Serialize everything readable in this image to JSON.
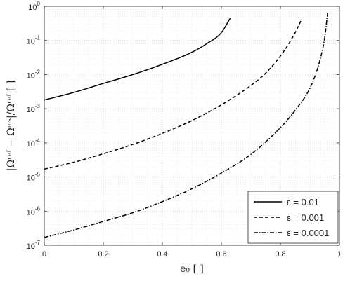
{
  "chart_data": {
    "type": "line",
    "xlabel": "e₀ [ ]",
    "ylabel": "|Ωʳᵉᶠ − Ωᵐˢ|/Ωʳᵉᶠ [ ]",
    "xlim": [
      0,
      1
    ],
    "ylim": [
      1e-07,
      1
    ],
    "yscale": "log",
    "grid": true,
    "legend_position": "bottom-right",
    "x_ticks": [
      "0",
      "0.2",
      "0.4",
      "0.6",
      "0.8",
      "1"
    ],
    "y_ticks": [
      {
        "base": "10",
        "exp": "0"
      },
      {
        "base": "10",
        "exp": "-1"
      },
      {
        "base": "10",
        "exp": "-2"
      },
      {
        "base": "10",
        "exp": "-3"
      },
      {
        "base": "10",
        "exp": "-4"
      },
      {
        "base": "10",
        "exp": "-5"
      },
      {
        "base": "10",
        "exp": "-6"
      },
      {
        "base": "10",
        "exp": "-7"
      }
    ],
    "series": [
      {
        "name": "ε = 0.01",
        "dash": "solid",
        "color": "#000000",
        "x": [
          0,
          0.1,
          0.2,
          0.3,
          0.4,
          0.5,
          0.55,
          0.6,
          0.63
        ],
        "y": [
          0.0018,
          0.003,
          0.0055,
          0.01,
          0.02,
          0.045,
          0.08,
          0.17,
          0.45
        ]
      },
      {
        "name": "ε = 0.001",
        "dash": "dashed",
        "color": "#000000",
        "x": [
          0,
          0.1,
          0.2,
          0.3,
          0.4,
          0.5,
          0.6,
          0.7,
          0.75,
          0.8,
          0.83,
          0.85,
          0.87
        ],
        "y": [
          1.7e-05,
          2.7e-05,
          4.8e-05,
          9e-05,
          0.00019,
          0.00045,
          0.0013,
          0.0048,
          0.011,
          0.035,
          0.085,
          0.17,
          0.38
        ]
      },
      {
        "name": "ε = 0.0001",
        "dash": "dashdot",
        "color": "#000000",
        "x": [
          0,
          0.1,
          0.2,
          0.3,
          0.4,
          0.5,
          0.6,
          0.7,
          0.8,
          0.85,
          0.9,
          0.93,
          0.95,
          0.96
        ],
        "y": [
          1.7e-07,
          2.8e-07,
          5e-07,
          9e-07,
          1.9e-06,
          4.5e-06,
          1.3e-05,
          4.6e-05,
          0.00028,
          0.0009,
          0.004,
          0.02,
          0.12,
          0.65
        ]
      }
    ]
  }
}
